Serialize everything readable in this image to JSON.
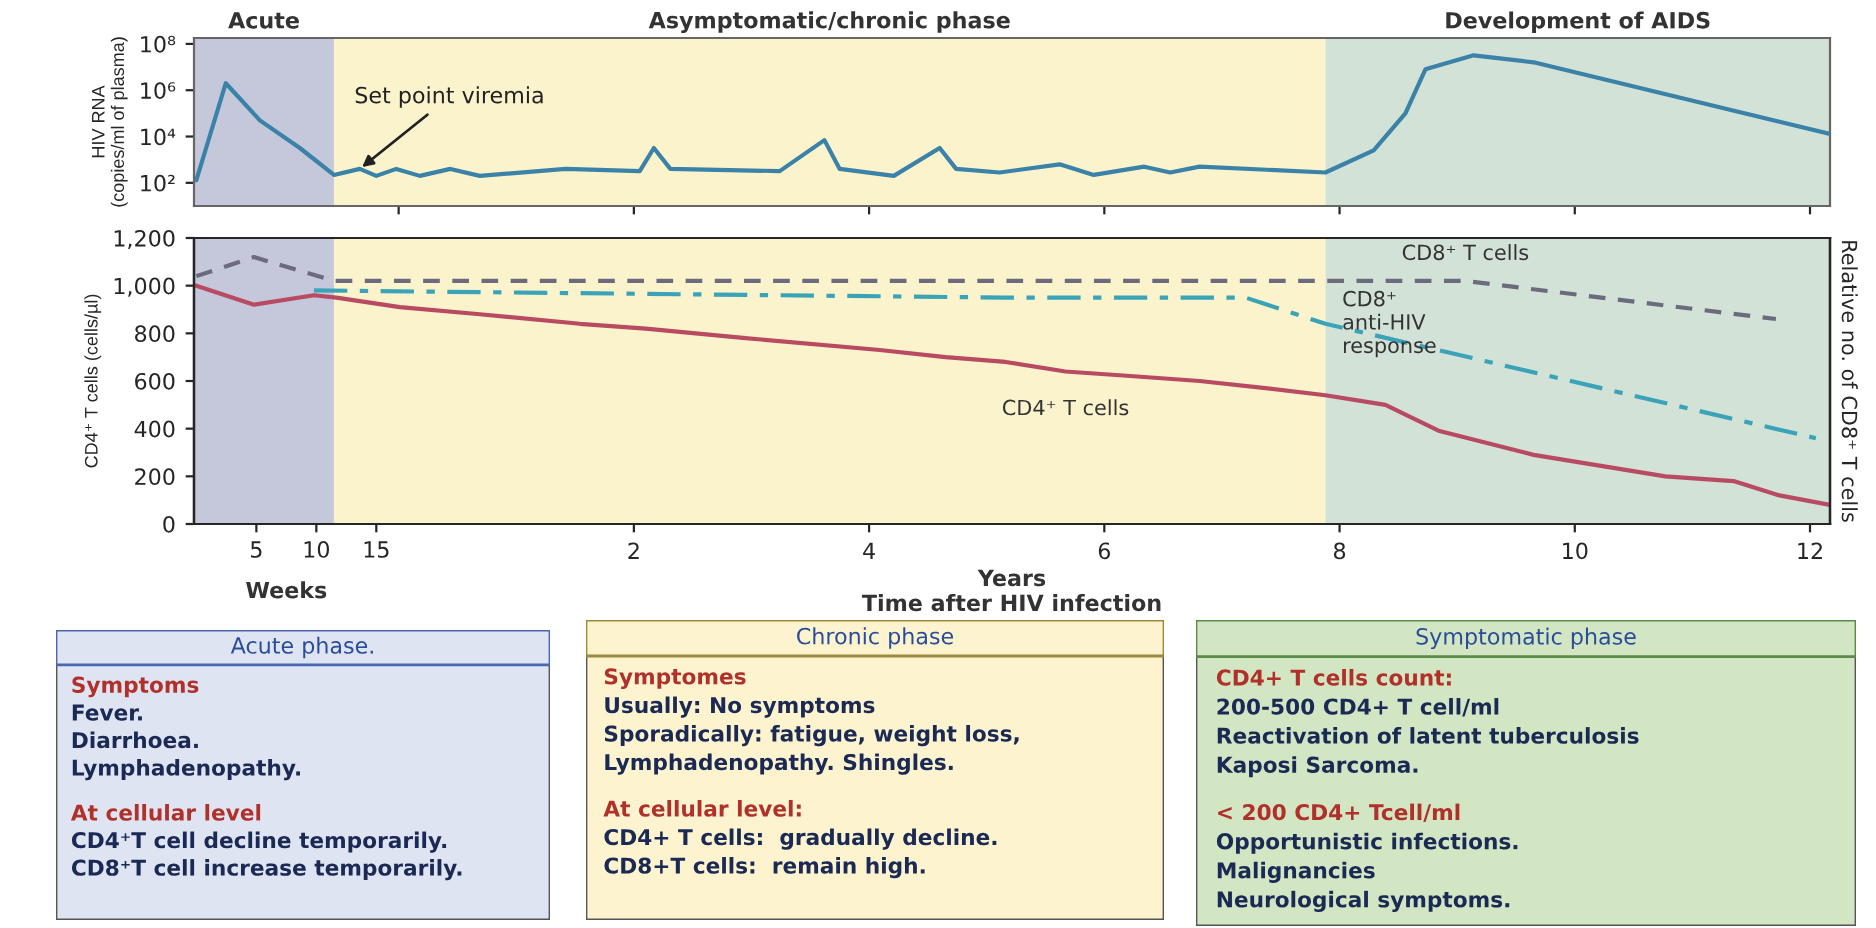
{
  "chart_data": [
    {
      "type": "line",
      "ylabel": "HIV RNA\n(copies/ml of plasma)",
      "log": "y",
      "xlim": [
        -1.74,
        12.17
      ],
      "ylim": [
        10,
        180000000
      ],
      "yticks": [
        {
          "value": 100,
          "label": "10²"
        },
        {
          "value": 10000,
          "label": "10⁴"
        },
        {
          "value": 1000000,
          "label": "10⁶"
        },
        {
          "value": 100000000,
          "label": "10⁸"
        }
      ],
      "tick_labels": "y",
      "grid": false,
      "legend": false,
      "bands": [
        {
          "axis": "x",
          "from": -1.74,
          "to": -0.55,
          "label": "Acute",
          "color": "#c5c8da"
        },
        {
          "axis": "x",
          "from": -0.55,
          "to": 7.88,
          "label": "Asymptomatic/chronic phase",
          "color": "#faf3cc"
        },
        {
          "axis": "x",
          "from": 7.88,
          "to": 12.17,
          "label": "Development of AIDS",
          "color": "#d2e2d6"
        }
      ],
      "annotations": [
        {
          "text": "Set point viremia",
          "x": -0.33,
          "y": 400
        }
      ],
      "series": [
        {
          "color": "#3a82a8",
          "line_style": "solid",
          "x": [
            -1.72,
            -1.47,
            -1.18,
            -0.84,
            -0.55,
            -0.33,
            -0.19,
            -0.02,
            0.18,
            0.44,
            0.69,
            1.42,
            2.05,
            2.17,
            2.31,
            3.24,
            3.62,
            3.75,
            4.21,
            4.6,
            4.74,
            5.11,
            5.62,
            5.91,
            6.34,
            6.56,
            6.81,
            7.88,
            8.29,
            8.56,
            8.73,
            9.14,
            9.65,
            12.17
          ],
          "values": [
            130,
            2000000,
            50000,
            3200,
            220,
            400,
            200,
            400,
            200,
            400,
            200,
            400,
            320,
            3200,
            400,
            320,
            7000,
            400,
            200,
            3200,
            400,
            280,
            630,
            220,
            500,
            280,
            500,
            280,
            2500,
            100000,
            8000000,
            32000000,
            16000000,
            13000
          ]
        }
      ]
    },
    {
      "type": "line",
      "ylabel": "CD4⁺ T cells (cells/µl)",
      "y2label": "Relative no. of CD8⁺ T cells",
      "xlabel": "Years\nTime after HIV infection",
      "xlim": [
        -1.74,
        12.17
      ],
      "ylim": [
        0,
        1200
      ],
      "xticks": [
        2,
        4,
        6,
        8,
        10,
        12
      ],
      "x2lim": [
        -0.2,
        136.2
      ],
      "x2ticks": [
        5,
        10,
        15
      ],
      "x2label": "Weeks",
      "yticks": [
        0,
        200,
        400,
        600,
        800,
        {
          "value": 1000,
          "label": "1,000"
        },
        {
          "value": 1200,
          "label": "1,200"
        }
      ],
      "grid": false,
      "legend": false,
      "bands": [
        {
          "axis": "x",
          "from": -1.74,
          "to": -0.55,
          "color": "#c5c8da"
        },
        {
          "axis": "x",
          "from": -0.55,
          "to": 7.88,
          "color": "#faf3cc"
        },
        {
          "axis": "x",
          "from": 7.88,
          "to": 12.17,
          "color": "#d2e2d6"
        }
      ],
      "series": [
        {
          "name": "CD4⁺ T cells",
          "color": "#b84a62",
          "line_style": "solid",
          "x": [
            -1.72,
            -1.23,
            -0.72,
            -0.53,
            0.01,
            0.69,
            1.54,
            2.1,
            2.95,
            4.09,
            4.65,
            5.16,
            5.67,
            6.25,
            6.81,
            7.37,
            7.88,
            8.39,
            8.85,
            9.65,
            10.77,
            11.35,
            11.74,
            12.17
          ],
          "values": [
            1000,
            920,
            960,
            950,
            910,
            880,
            840,
            820,
            780,
            730,
            700,
            680,
            640,
            620,
            600,
            570,
            540,
            500,
            390,
            290,
            200,
            180,
            120,
            80
          ]
        },
        {
          "name": "CD8⁺ T cells",
          "color": "#6b6b7d",
          "line_style": "dashed",
          "x": [
            -1.72,
            -1.23,
            -0.55,
            0.01,
            9.07,
            11.71
          ],
          "values": [
            1040,
            1120,
            1020,
            1020,
            1020,
            860
          ]
        },
        {
          "name": "CD8⁺\nanti-HIV\nresponse",
          "color": "#3ba3b8",
          "line_style": "dashdot",
          "x": [
            -0.72,
            5.16,
            7.2,
            7.88,
            12.05
          ],
          "values": [
            980,
            950,
            950,
            840,
            360
          ]
        }
      ]
    },
    {
      "type": "other",
      "title": "Acute phase.",
      "annotations": [
        "Symptoms\nFever.\nDiarrhoea.\nLymphadenopathy.",
        "At cellular level\nCD4⁺T cell decline temporarily.\nCD8⁺T cell increase temporarily."
      ]
    },
    {
      "type": "other",
      "title": "Chronic phase",
      "annotations": [
        "Symptomes\nUsually: No symptoms\nSporadically: fatigue, weight loss,\nLymphadenopathy. Shingles.",
        "At cellular level:\nCD4+ T cells:  gradually decline.\nCD8+T cells:  remain high."
      ]
    },
    {
      "type": "other",
      "title": "Symptomatic phase",
      "annotations": [
        "CD4+ T cells count:\n200-500 CD4+ T cell/ml\nReactivation of latent tuberculosis\nKaposi Sarcoma.",
        "< 200 CD4+ Tcell/ml\nOpportunistic infections.\nMalignancies\nNeurological symptoms."
      ]
    }
  ]
}
